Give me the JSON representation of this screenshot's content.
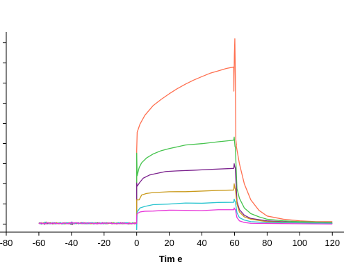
{
  "chart_data": {
    "type": "line",
    "title": "",
    "xlabel": "Tim e",
    "ylabel": "",
    "xlim": [
      -80,
      128
    ],
    "ylim": [
      -10,
      235
    ],
    "x_ticks": [
      -80,
      -60,
      -40,
      -20,
      0,
      20,
      40,
      60,
      80,
      100,
      120
    ],
    "y_ticks": [
      0,
      25,
      50,
      75,
      100,
      125,
      150,
      175,
      200,
      225
    ],
    "y_tick_labels_visible": false,
    "grid": false,
    "legend": "none",
    "association_start": 0,
    "association_end": 60,
    "dissociation_end": 120,
    "series": [
      {
        "color": "#ff6f4f",
        "baseline": 1,
        "assoc_points": [
          [
            0,
            91
          ],
          [
            0.3,
            114
          ],
          [
            2,
            124
          ],
          [
            5,
            135
          ],
          [
            10,
            147
          ],
          [
            15,
            155
          ],
          [
            20,
            162
          ],
          [
            25,
            168
          ],
          [
            30,
            174
          ],
          [
            35,
            179
          ],
          [
            40,
            183
          ],
          [
            45,
            187
          ],
          [
            50,
            190
          ],
          [
            55,
            193
          ],
          [
            59.5,
            195
          ]
        ],
        "spike": [
          [
            59.6,
            165
          ],
          [
            59.9,
            210
          ],
          [
            60.2,
            230
          ],
          [
            60.5,
            185
          ],
          [
            60.8,
            105
          ],
          [
            61.2,
            98
          ]
        ],
        "dissoc_points": [
          [
            61,
            98
          ],
          [
            63,
            75
          ],
          [
            66,
            50
          ],
          [
            70,
            30
          ],
          [
            75,
            17
          ],
          [
            80,
            10
          ],
          [
            90,
            6
          ],
          [
            100,
            4
          ],
          [
            110,
            3
          ],
          [
            120,
            3
          ]
        ]
      },
      {
        "color": "#44c34c",
        "baseline": 1,
        "assoc_points": [
          [
            0,
            88
          ],
          [
            0.3,
            60
          ],
          [
            1.5,
            70
          ],
          [
            3,
            76
          ],
          [
            6,
            82
          ],
          [
            10,
            87
          ],
          [
            15,
            91
          ],
          [
            20,
            94
          ],
          [
            30,
            98
          ],
          [
            40,
            100
          ],
          [
            50,
            102
          ],
          [
            59.5,
            104
          ]
        ],
        "spike": [
          [
            59.8,
            108
          ],
          [
            60.3,
            96
          ]
        ],
        "dissoc_points": [
          [
            60.5,
            96
          ],
          [
            61.5,
            44
          ],
          [
            63,
            32
          ],
          [
            66,
            20
          ],
          [
            70,
            13
          ],
          [
            75,
            9
          ],
          [
            80,
            6
          ],
          [
            90,
            4
          ],
          [
            100,
            3
          ],
          [
            120,
            2
          ]
        ]
      },
      {
        "color": "#7a1f8c",
        "baseline": 1,
        "assoc_points": [
          [
            0,
            51
          ],
          [
            0.3,
            47
          ],
          [
            2,
            52
          ],
          [
            4,
            57
          ],
          [
            8,
            61
          ],
          [
            12,
            63
          ],
          [
            18,
            65
          ],
          [
            25,
            66
          ],
          [
            35,
            67
          ],
          [
            45,
            68
          ],
          [
            59.5,
            69
          ]
        ],
        "spike": [
          [
            59.8,
            75
          ],
          [
            60.3,
            70
          ]
        ],
        "dissoc_points": [
          [
            60.5,
            70
          ],
          [
            61.5,
            28
          ],
          [
            63,
            18
          ],
          [
            66,
            11
          ],
          [
            70,
            7
          ],
          [
            80,
            4
          ],
          [
            100,
            2
          ],
          [
            120,
            1
          ]
        ]
      },
      {
        "color": "#c99a1b",
        "baseline": 1,
        "assoc_points": [
          [
            0,
            30
          ],
          [
            0.3,
            30
          ],
          [
            1.5,
            30
          ],
          [
            3,
            36
          ],
          [
            6,
            38
          ],
          [
            10,
            39
          ],
          [
            20,
            40
          ],
          [
            30,
            40
          ],
          [
            40,
            41
          ],
          [
            50,
            42
          ],
          [
            59.5,
            42
          ]
        ],
        "spike": [
          [
            59.8,
            50
          ],
          [
            60.3,
            44
          ]
        ],
        "dissoc_points": [
          [
            60.5,
            44
          ],
          [
            61.5,
            25
          ],
          [
            63,
            15
          ],
          [
            66,
            9
          ],
          [
            70,
            6
          ],
          [
            80,
            3
          ],
          [
            100,
            2
          ],
          [
            120,
            1
          ]
        ]
      },
      {
        "color": "#29c4cf",
        "baseline": 1,
        "assoc_points": [
          [
            0,
            -7
          ],
          [
            0.3,
            15
          ],
          [
            2,
            20
          ],
          [
            5,
            22
          ],
          [
            10,
            24
          ],
          [
            20,
            25
          ],
          [
            30,
            26
          ],
          [
            40,
            26
          ],
          [
            50,
            27
          ],
          [
            59.5,
            27
          ]
        ],
        "spike": [
          [
            59.8,
            31
          ],
          [
            60.3,
            28
          ]
        ],
        "dissoc_points": [
          [
            60.5,
            28
          ],
          [
            61.5,
            14
          ],
          [
            63,
            8
          ],
          [
            66,
            5
          ],
          [
            70,
            3
          ],
          [
            80,
            2
          ],
          [
            120,
            1
          ]
        ]
      },
      {
        "color": "#e733d8",
        "baseline": 1,
        "assoc_points": [
          [
            0,
            10
          ],
          [
            0.3,
            13
          ],
          [
            2,
            15
          ],
          [
            5,
            16
          ],
          [
            10,
            16
          ],
          [
            20,
            17
          ],
          [
            30,
            17
          ],
          [
            40,
            17
          ],
          [
            50,
            18
          ],
          [
            59.5,
            18
          ]
        ],
        "spike": [
          [
            59.8,
            20
          ],
          [
            60.3,
            18
          ]
        ],
        "dissoc_points": [
          [
            60.5,
            18
          ],
          [
            61.5,
            8
          ],
          [
            63,
            4
          ],
          [
            66,
            2
          ],
          [
            70,
            1
          ],
          [
            120,
            0
          ]
        ]
      }
    ]
  },
  "colors": {
    "axis": "#000000",
    "background": "#ffffff"
  }
}
